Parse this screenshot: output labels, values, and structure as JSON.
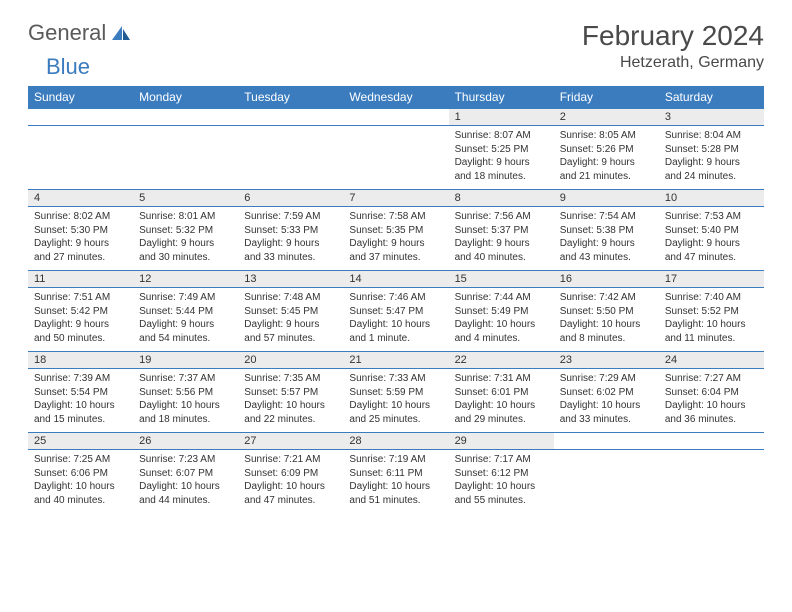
{
  "logo": {
    "text1": "General",
    "text2": "Blue"
  },
  "title": "February 2024",
  "location": "Hetzerath, Germany",
  "colors": {
    "header_bg": "#3b7cbf",
    "daynum_bg": "#ececec",
    "text": "#333333",
    "title_text": "#4a4a4a"
  },
  "fonts": {
    "title_size": 28,
    "location_size": 16,
    "dayhead_size": 12,
    "daynum_size": 11,
    "detail_size": 10
  },
  "day_headers": [
    "Sunday",
    "Monday",
    "Tuesday",
    "Wednesday",
    "Thursday",
    "Friday",
    "Saturday"
  ],
  "weeks": [
    [
      null,
      null,
      null,
      null,
      {
        "n": "1",
        "sr": "8:07 AM",
        "ss": "5:25 PM",
        "dl": "9 hours and 18 minutes."
      },
      {
        "n": "2",
        "sr": "8:05 AM",
        "ss": "5:26 PM",
        "dl": "9 hours and 21 minutes."
      },
      {
        "n": "3",
        "sr": "8:04 AM",
        "ss": "5:28 PM",
        "dl": "9 hours and 24 minutes."
      }
    ],
    [
      {
        "n": "4",
        "sr": "8:02 AM",
        "ss": "5:30 PM",
        "dl": "9 hours and 27 minutes."
      },
      {
        "n": "5",
        "sr": "8:01 AM",
        "ss": "5:32 PM",
        "dl": "9 hours and 30 minutes."
      },
      {
        "n": "6",
        "sr": "7:59 AM",
        "ss": "5:33 PM",
        "dl": "9 hours and 33 minutes."
      },
      {
        "n": "7",
        "sr": "7:58 AM",
        "ss": "5:35 PM",
        "dl": "9 hours and 37 minutes."
      },
      {
        "n": "8",
        "sr": "7:56 AM",
        "ss": "5:37 PM",
        "dl": "9 hours and 40 minutes."
      },
      {
        "n": "9",
        "sr": "7:54 AM",
        "ss": "5:38 PM",
        "dl": "9 hours and 43 minutes."
      },
      {
        "n": "10",
        "sr": "7:53 AM",
        "ss": "5:40 PM",
        "dl": "9 hours and 47 minutes."
      }
    ],
    [
      {
        "n": "11",
        "sr": "7:51 AM",
        "ss": "5:42 PM",
        "dl": "9 hours and 50 minutes."
      },
      {
        "n": "12",
        "sr": "7:49 AM",
        "ss": "5:44 PM",
        "dl": "9 hours and 54 minutes."
      },
      {
        "n": "13",
        "sr": "7:48 AM",
        "ss": "5:45 PM",
        "dl": "9 hours and 57 minutes."
      },
      {
        "n": "14",
        "sr": "7:46 AM",
        "ss": "5:47 PM",
        "dl": "10 hours and 1 minute."
      },
      {
        "n": "15",
        "sr": "7:44 AM",
        "ss": "5:49 PM",
        "dl": "10 hours and 4 minutes."
      },
      {
        "n": "16",
        "sr": "7:42 AM",
        "ss": "5:50 PM",
        "dl": "10 hours and 8 minutes."
      },
      {
        "n": "17",
        "sr": "7:40 AM",
        "ss": "5:52 PM",
        "dl": "10 hours and 11 minutes."
      }
    ],
    [
      {
        "n": "18",
        "sr": "7:39 AM",
        "ss": "5:54 PM",
        "dl": "10 hours and 15 minutes."
      },
      {
        "n": "19",
        "sr": "7:37 AM",
        "ss": "5:56 PM",
        "dl": "10 hours and 18 minutes."
      },
      {
        "n": "20",
        "sr": "7:35 AM",
        "ss": "5:57 PM",
        "dl": "10 hours and 22 minutes."
      },
      {
        "n": "21",
        "sr": "7:33 AM",
        "ss": "5:59 PM",
        "dl": "10 hours and 25 minutes."
      },
      {
        "n": "22",
        "sr": "7:31 AM",
        "ss": "6:01 PM",
        "dl": "10 hours and 29 minutes."
      },
      {
        "n": "23",
        "sr": "7:29 AM",
        "ss": "6:02 PM",
        "dl": "10 hours and 33 minutes."
      },
      {
        "n": "24",
        "sr": "7:27 AM",
        "ss": "6:04 PM",
        "dl": "10 hours and 36 minutes."
      }
    ],
    [
      {
        "n": "25",
        "sr": "7:25 AM",
        "ss": "6:06 PM",
        "dl": "10 hours and 40 minutes."
      },
      {
        "n": "26",
        "sr": "7:23 AM",
        "ss": "6:07 PM",
        "dl": "10 hours and 44 minutes."
      },
      {
        "n": "27",
        "sr": "7:21 AM",
        "ss": "6:09 PM",
        "dl": "10 hours and 47 minutes."
      },
      {
        "n": "28",
        "sr": "7:19 AM",
        "ss": "6:11 PM",
        "dl": "10 hours and 51 minutes."
      },
      {
        "n": "29",
        "sr": "7:17 AM",
        "ss": "6:12 PM",
        "dl": "10 hours and 55 minutes."
      },
      null,
      null
    ]
  ],
  "labels": {
    "sunrise": "Sunrise: ",
    "sunset": "Sunset: ",
    "daylight": "Daylight: "
  }
}
